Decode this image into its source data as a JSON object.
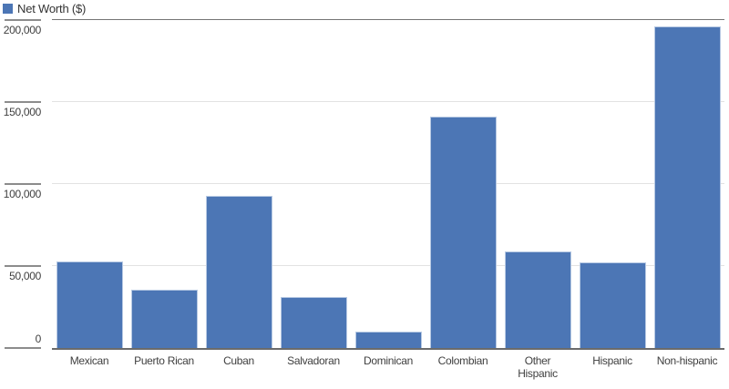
{
  "chart_data": {
    "type": "bar",
    "title": "",
    "legend": "Net Worth ($)",
    "legend_position": "top-left",
    "categories": [
      "Mexican",
      "Puerto Rican",
      "Cuban",
      "Salvadoran",
      "Dominican",
      "Colombian",
      "Other\nHispanic",
      "Hispanic",
      "Non-hispanic"
    ],
    "values": [
      53000,
      35500,
      93000,
      31000,
      10000,
      141000,
      59000,
      52000,
      196000
    ],
    "xlabel": "",
    "ylabel": "",
    "ylim": [
      0,
      200000
    ],
    "grid": true,
    "yticks": [
      {
        "value": 0,
        "label": "0"
      },
      {
        "value": 50000,
        "label": "50,000"
      },
      {
        "value": 100000,
        "label": "100,000"
      },
      {
        "value": 150000,
        "label": "150,000"
      },
      {
        "value": 200000,
        "label": "200,000"
      }
    ],
    "colors": {
      "bar_fill": "#4c76b5",
      "bar_edge": "#b7c9e3",
      "axis_dark": "#6b6b6b",
      "tick_mark": "#8c8c8c",
      "gridline_light": "#e2e2e2",
      "gridline_dark": "#757575",
      "label_text": "#3f3f3f",
      "legend_text": "#333333"
    }
  }
}
